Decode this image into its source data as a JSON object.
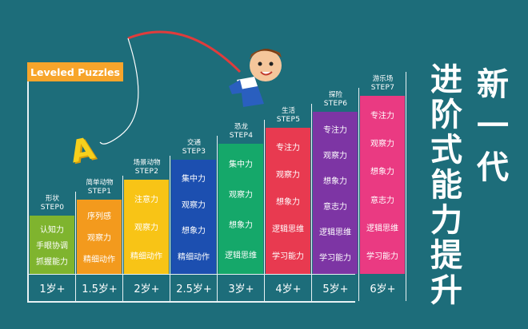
{
  "header": {
    "tag": "Leveled Puzzles"
  },
  "steps": [
    {
      "name": "形状",
      "step": "STEP0",
      "skills": [
        "认知力",
        "手眼协调",
        "抓握能力"
      ],
      "age": "1岁+",
      "color": "#7fb42e"
    },
    {
      "name": "简单动物",
      "step": "STEP1",
      "skills": [
        "序列感",
        "观察力",
        "精细动作"
      ],
      "age": "1.5岁+",
      "color": "#f39a1d"
    },
    {
      "name": "场景动物",
      "step": "STEP2",
      "skills": [
        "注意力",
        "观察力",
        "精细动作"
      ],
      "age": "2岁+",
      "color": "#f8c416"
    },
    {
      "name": "交通",
      "step": "STEP3",
      "skills": [
        "集中力",
        "观察力",
        "想象力",
        "精细动作"
      ],
      "age": "2.5岁+",
      "color": "#1c4fb0"
    },
    {
      "name": "恐龙",
      "step": "STEP4",
      "skills": [
        "集中力",
        "观察力",
        "想象力",
        "逻辑思维"
      ],
      "age": "3岁+",
      "color": "#15a86a"
    },
    {
      "name": "生活",
      "step": "STEP5",
      "skills": [
        "专注力",
        "观察力",
        "想象力",
        "逻辑思维",
        "学习能力"
      ],
      "age": "4岁+",
      "color": "#e83a50"
    },
    {
      "name": "探险",
      "step": "STEP6",
      "skills": [
        "专注力",
        "观察力",
        "想象力",
        "意志力",
        "逻辑思维",
        "学习能力"
      ],
      "age": "5岁+",
      "color": "#7d35a4"
    },
    {
      "name": "游乐场",
      "step": "STEP7",
      "skills": [
        "专注力",
        "观察力",
        "想象力",
        "意志力",
        "逻辑思维",
        "学习能力"
      ],
      "age": "6岁+",
      "color": "#ea3a82"
    }
  ],
  "title": {
    "line1": [
      "新",
      "一",
      "代"
    ],
    "line2": [
      "进",
      "阶",
      "式",
      "能",
      "力",
      "提",
      "升"
    ]
  },
  "decor": {
    "letter": "A"
  }
}
